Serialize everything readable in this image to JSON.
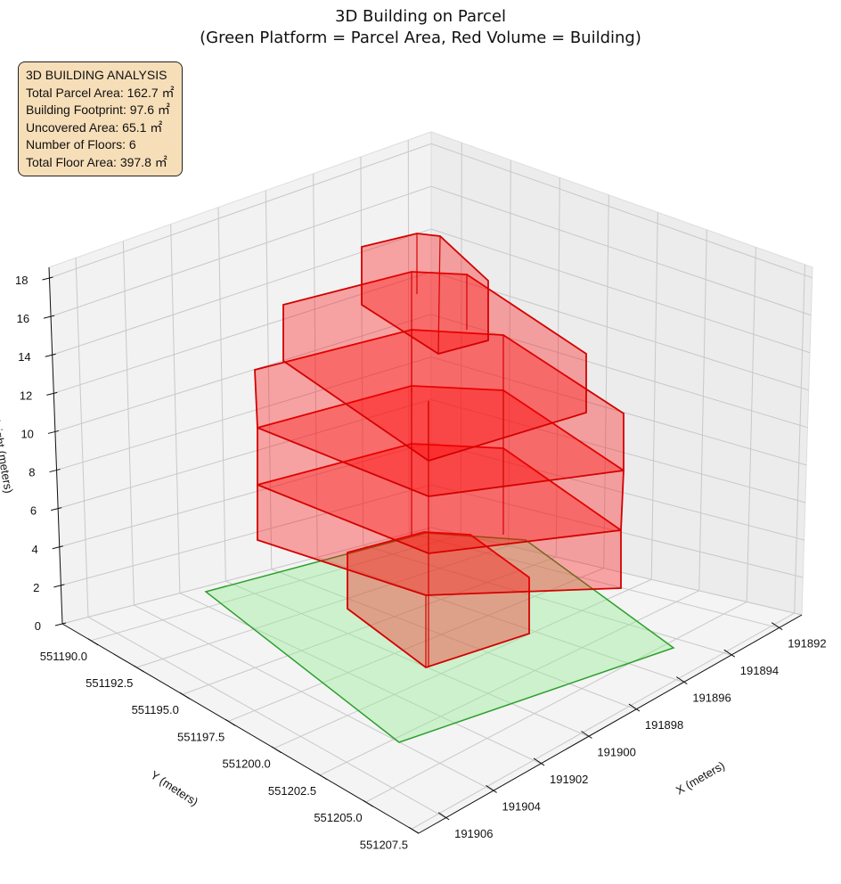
{
  "chart_data": {
    "type": "3d-polygon",
    "title": "3D Building on Parcel",
    "subtitle": "(Green Platform = Parcel Area, Red Volume = Building)",
    "xlabel": "X (meters)",
    "ylabel": "Y (meters)",
    "zlabel": "Height (meters)",
    "x_ticks": [
      "191892",
      "191894",
      "191896",
      "191898",
      "191900",
      "191902",
      "191904",
      "191906"
    ],
    "y_ticks": [
      "551190.0",
      "551192.5",
      "551195.0",
      "551197.5",
      "551200.0",
      "551202.5",
      "551205.0",
      "551207.5"
    ],
    "z_ticks": [
      "0",
      "2",
      "4",
      "6",
      "8",
      "10",
      "12",
      "14",
      "16",
      "18"
    ],
    "zlim": [
      0,
      18
    ],
    "parcel_color": "#2ca02c",
    "building_color": "#ff0000",
    "series": [
      {
        "name": "Parcel Area",
        "height": 0
      },
      {
        "name": "Building",
        "floors": 6
      }
    ]
  },
  "info": {
    "heading": "3D BUILDING ANALYSIS",
    "lines": [
      "Total Parcel Area: 162.7 ㎡",
      "Building Footprint: 97.6 ㎡",
      "Uncovered Area: 65.1 ㎡",
      "Number of Floors: 6",
      "Total Floor Area: 397.8 ㎡"
    ]
  }
}
